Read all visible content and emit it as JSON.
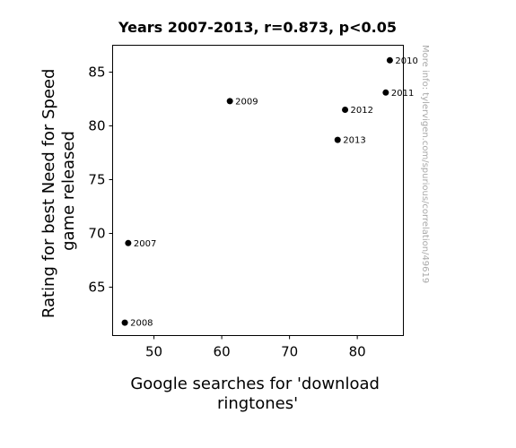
{
  "chart_data": {
    "type": "scatter",
    "title": "Years 2007-2013, r=0.873, p<0.05",
    "xlabel": [
      "Google searches for 'download",
      "ringtones'"
    ],
    "ylabel": [
      "Rating for best Need for Speed",
      "game released"
    ],
    "watermark": "More info: tylervigen.com/spurious/correlation/49619",
    "xlim": [
      43.9,
      86.8
    ],
    "ylim": [
      60.5,
      87.5
    ],
    "xticks": [
      50,
      60,
      70,
      80
    ],
    "yticks": [
      65,
      70,
      75,
      80,
      85
    ],
    "grid": false,
    "point_color": "#000000",
    "points": [
      {
        "x": 46.2,
        "y": 69.1,
        "label": "2007"
      },
      {
        "x": 45.7,
        "y": 61.7,
        "label": "2008"
      },
      {
        "x": 61.2,
        "y": 82.3,
        "label": "2009"
      },
      {
        "x": 84.8,
        "y": 86.1,
        "label": "2010"
      },
      {
        "x": 84.2,
        "y": 83.1,
        "label": "2011"
      },
      {
        "x": 78.2,
        "y": 81.5,
        "label": "2012"
      },
      {
        "x": 77.1,
        "y": 78.7,
        "label": "2013"
      }
    ]
  }
}
